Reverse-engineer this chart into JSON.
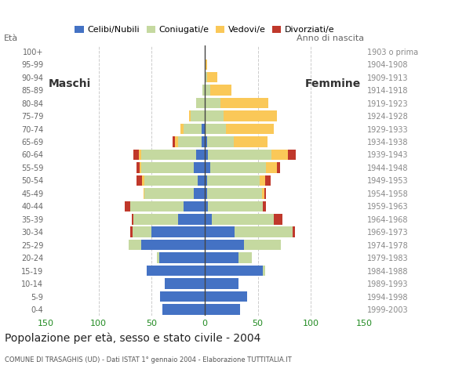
{
  "age_groups": [
    "0-4",
    "5-9",
    "10-14",
    "15-19",
    "20-24",
    "25-29",
    "30-34",
    "35-39",
    "40-44",
    "45-49",
    "50-54",
    "55-59",
    "60-64",
    "65-69",
    "70-74",
    "75-79",
    "80-84",
    "85-89",
    "90-94",
    "95-99",
    "100+"
  ],
  "birth_years": [
    "1999-2003",
    "1994-1998",
    "1989-1993",
    "1984-1988",
    "1979-1983",
    "1974-1978",
    "1969-1973",
    "1964-1968",
    "1959-1963",
    "1954-1958",
    "1949-1953",
    "1944-1948",
    "1939-1943",
    "1934-1938",
    "1929-1933",
    "1924-1928",
    "1919-1923",
    "1914-1918",
    "1909-1913",
    "1904-1908",
    "1903 o prima"
  ],
  "males_celibe": [
    40,
    42,
    38,
    55,
    43,
    60,
    50,
    25,
    20,
    10,
    7,
    10,
    8,
    3,
    3,
    0,
    0,
    0,
    0,
    0,
    0
  ],
  "males_coniugato": [
    0,
    0,
    0,
    0,
    2,
    12,
    18,
    42,
    50,
    47,
    50,
    50,
    52,
    22,
    17,
    13,
    8,
    2,
    0,
    0,
    0
  ],
  "males_vedovo": [
    0,
    0,
    0,
    0,
    0,
    0,
    0,
    0,
    0,
    1,
    2,
    1,
    2,
    3,
    3,
    2,
    0,
    0,
    0,
    0,
    0
  ],
  "males_divorziato": [
    0,
    0,
    0,
    0,
    0,
    0,
    2,
    2,
    5,
    0,
    5,
    3,
    5,
    2,
    0,
    0,
    0,
    0,
    0,
    0,
    0
  ],
  "females_nubile": [
    33,
    40,
    32,
    55,
    32,
    37,
    28,
    7,
    3,
    2,
    2,
    5,
    3,
    2,
    0,
    0,
    0,
    0,
    0,
    0,
    0
  ],
  "females_coniugata": [
    0,
    0,
    0,
    2,
    12,
    35,
    55,
    58,
    52,
    52,
    50,
    53,
    60,
    25,
    20,
    18,
    15,
    5,
    2,
    0,
    0
  ],
  "females_vedova": [
    0,
    0,
    0,
    0,
    0,
    0,
    0,
    0,
    0,
    2,
    5,
    10,
    15,
    32,
    45,
    50,
    45,
    20,
    10,
    2,
    0
  ],
  "females_divorziata": [
    0,
    0,
    0,
    0,
    0,
    0,
    2,
    8,
    3,
    2,
    5,
    3,
    8,
    0,
    0,
    0,
    0,
    0,
    0,
    0,
    0
  ],
  "color_celibe": "#4472C4",
  "color_coniugato": "#C5D9A0",
  "color_vedovo": "#FAC858",
  "color_divorziato": "#C0382B",
  "legend_labels": [
    "Celibi/Nubili",
    "Coniugati/e",
    "Vedovi/e",
    "Divorziati/e"
  ],
  "title": "Popolazione per età, sesso e stato civile - 2004",
  "subtitle": "COMUNE DI TRASAGHIS (UD) - Dati ISTAT 1° gennaio 2004 - Elaborazione TUTTITALIA.IT",
  "anno_label": "Anno di nascita",
  "maschi_label": "Maschi",
  "femmine_label": "Femmine",
  "xlim": 150
}
